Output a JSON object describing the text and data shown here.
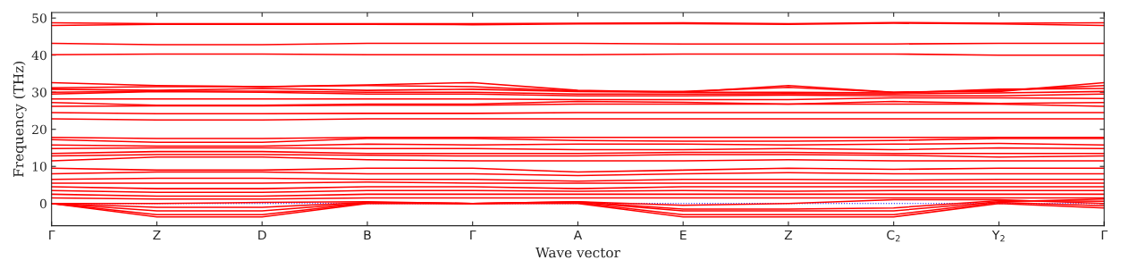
{
  "chart_data": {
    "type": "line",
    "xlabel": "Wave vector",
    "ylabel": "Frequency (THz)",
    "categories": [
      "Γ",
      "Z",
      "D",
      "B",
      "Γ",
      "A",
      "E",
      "Z",
      "C$_{2}$",
      "Y$_{2}$",
      "Γ"
    ],
    "ylim": [
      -6,
      51.5
    ],
    "yticks": [
      0,
      10,
      20,
      30,
      40,
      50
    ],
    "ref_lines": [
      {
        "axis": "y",
        "value": 0,
        "color": "#0000ff",
        "line_style": "dotted"
      }
    ],
    "series": [
      {
        "color": "#ff0000",
        "values": [
          48.0,
          48.3,
          48.3,
          48.3,
          48.2,
          48.4,
          48.5,
          48.3,
          48.6,
          48.4,
          48.0
        ]
      },
      {
        "color": "#ff0000",
        "values": [
          48.7,
          48.5,
          48.5,
          48.5,
          48.5,
          48.6,
          48.7,
          48.5,
          48.8,
          48.6,
          48.7
        ]
      },
      {
        "color": "#ff0000",
        "values": [
          43.2,
          42.8,
          42.8,
          43.2,
          43.2,
          43.2,
          43.0,
          43.0,
          43.0,
          43.2,
          43.2
        ]
      },
      {
        "color": "#ff0000",
        "values": [
          40.1,
          40.3,
          40.3,
          40.1,
          40.1,
          40.1,
          40.3,
          40.3,
          40.3,
          40.0,
          40.0
        ]
      },
      {
        "color": "#ff0000",
        "values": [
          32.6,
          31.8,
          31.5,
          32.0,
          32.6,
          30.5,
          30.0,
          31.8,
          30.0,
          30.2,
          32.6
        ]
      },
      {
        "color": "#ff0000",
        "values": [
          31.2,
          31.5,
          31.5,
          31.8,
          31.5,
          30.3,
          30.2,
          31.3,
          30.0,
          30.5,
          31.8
        ]
      },
      {
        "color": "#ff0000",
        "values": [
          30.8,
          30.5,
          31.0,
          30.5,
          30.8,
          30.2,
          30.0,
          30.0,
          29.8,
          30.8,
          31.0
        ]
      },
      {
        "color": "#ff0000",
        "values": [
          30.0,
          30.3,
          30.3,
          30.0,
          30.0,
          29.5,
          29.5,
          29.6,
          29.5,
          29.8,
          30.2
        ]
      },
      {
        "color": "#ff0000",
        "values": [
          29.5,
          30.2,
          30.0,
          29.5,
          29.5,
          29.0,
          29.0,
          29.2,
          29.0,
          29.0,
          29.5
        ]
      },
      {
        "color": "#ff0000",
        "values": [
          28.2,
          28.2,
          28.2,
          28.2,
          28.2,
          28.0,
          28.0,
          28.0,
          28.5,
          28.5,
          28.3
        ]
      },
      {
        "color": "#ff0000",
        "values": [
          27.2,
          26.5,
          26.5,
          26.8,
          26.8,
          27.5,
          27.3,
          26.8,
          27.5,
          27.0,
          27.2
        ]
      },
      {
        "color": "#ff0000",
        "values": [
          26.2,
          26.3,
          26.3,
          26.5,
          26.5,
          26.8,
          26.8,
          26.8,
          26.8,
          26.8,
          26.2
        ]
      },
      {
        "color": "#ff0000",
        "values": [
          24.5,
          24.2,
          24.2,
          24.3,
          24.3,
          24.5,
          24.5,
          24.5,
          24.5,
          24.5,
          24.5
        ]
      },
      {
        "color": "#ff0000",
        "values": [
          22.8,
          22.5,
          22.5,
          22.8,
          22.8,
          22.8,
          22.8,
          22.8,
          22.8,
          22.8,
          22.8
        ]
      },
      {
        "color": "#ff0000",
        "values": [
          17.8,
          17.5,
          17.5,
          17.8,
          17.8,
          17.8,
          17.8,
          17.8,
          17.8,
          17.8,
          17.8
        ]
      },
      {
        "color": "#ff0000",
        "values": [
          17.2,
          16.5,
          16.5,
          17.5,
          17.5,
          17.0,
          16.8,
          16.8,
          17.0,
          17.5,
          17.5
        ]
      },
      {
        "color": "#ff0000",
        "values": [
          15.8,
          15.5,
          15.5,
          16.0,
          15.8,
          16.0,
          16.0,
          15.8,
          16.0,
          16.2,
          15.8
        ]
      },
      {
        "color": "#ff0000",
        "values": [
          14.8,
          15.0,
          15.0,
          14.8,
          14.8,
          14.5,
          14.5,
          14.8,
          14.5,
          15.0,
          14.8
        ]
      },
      {
        "color": "#ff0000",
        "values": [
          13.5,
          14.0,
          14.0,
          13.5,
          13.5,
          13.5,
          13.8,
          13.8,
          13.5,
          13.5,
          13.5
        ]
      },
      {
        "color": "#ff0000",
        "values": [
          12.8,
          13.2,
          13.2,
          13.0,
          12.8,
          12.8,
          13.2,
          13.2,
          13.0,
          12.5,
          12.8
        ]
      },
      {
        "color": "#ff0000",
        "values": [
          11.5,
          12.5,
          12.5,
          11.8,
          11.5,
          11.5,
          11.5,
          11.8,
          11.5,
          11.5,
          11.5
        ]
      },
      {
        "color": "#ff0000",
        "values": [
          9.5,
          9.0,
          9.0,
          9.5,
          9.5,
          8.5,
          9.0,
          9.5,
          9.2,
          9.5,
          9.5
        ]
      },
      {
        "color": "#ff0000",
        "values": [
          8.0,
          8.5,
          8.5,
          8.0,
          8.0,
          7.5,
          8.0,
          8.3,
          8.0,
          8.0,
          8.0
        ]
      },
      {
        "color": "#ff0000",
        "values": [
          6.5,
          6.8,
          6.8,
          6.5,
          6.5,
          6.0,
          6.5,
          6.5,
          6.3,
          6.5,
          6.5
        ]
      },
      {
        "color": "#ff0000",
        "values": [
          5.5,
          5.5,
          5.5,
          5.8,
          5.5,
          5.5,
          5.5,
          5.5,
          5.5,
          5.5,
          5.5
        ]
      },
      {
        "color": "#ff0000",
        "values": [
          4.5,
          4.0,
          4.0,
          4.5,
          4.5,
          4.0,
          4.5,
          4.5,
          4.5,
          4.5,
          4.5
        ]
      },
      {
        "color": "#ff0000",
        "values": [
          3.5,
          3.0,
          3.0,
          3.5,
          3.5,
          3.3,
          3.5,
          3.3,
          3.5,
          3.5,
          3.5
        ]
      },
      {
        "color": "#ff0000",
        "values": [
          2.5,
          2.0,
          2.0,
          2.5,
          2.5,
          2.5,
          2.5,
          2.5,
          2.5,
          2.5,
          2.5
        ]
      },
      {
        "color": "#ff0000",
        "values": [
          1.5,
          1.2,
          1.2,
          1.5,
          1.5,
          1.5,
          1.5,
          1.5,
          1.5,
          1.5,
          1.5
        ]
      },
      {
        "color": "#ff0000",
        "values": [
          0,
          0,
          0.3,
          0.5,
          0,
          0.5,
          -0.5,
          0,
          1.0,
          1.0,
          0
        ]
      },
      {
        "color": "#ff0000",
        "values": [
          0,
          -1.0,
          -1.0,
          0.3,
          0,
          0.5,
          -1.5,
          -1.5,
          -1.2,
          0.8,
          0.6
        ]
      },
      {
        "color": "#ff0000",
        "values": [
          0,
          -2.0,
          -2.0,
          0.2,
          0,
          0.3,
          -2.0,
          -2.0,
          -2.0,
          0.5,
          1.2
        ]
      },
      {
        "color": "#ff0000",
        "values": [
          0,
          -3.0,
          -3.0,
          0.1,
          0,
          0.2,
          -3.0,
          -3.0,
          -3.0,
          0.3,
          -0.6
        ]
      },
      {
        "color": "#ff0000",
        "values": [
          0,
          -3.6,
          -3.6,
          0,
          0,
          0,
          -3.6,
          -3.6,
          -3.6,
          0,
          -1.2
        ]
      }
    ]
  }
}
